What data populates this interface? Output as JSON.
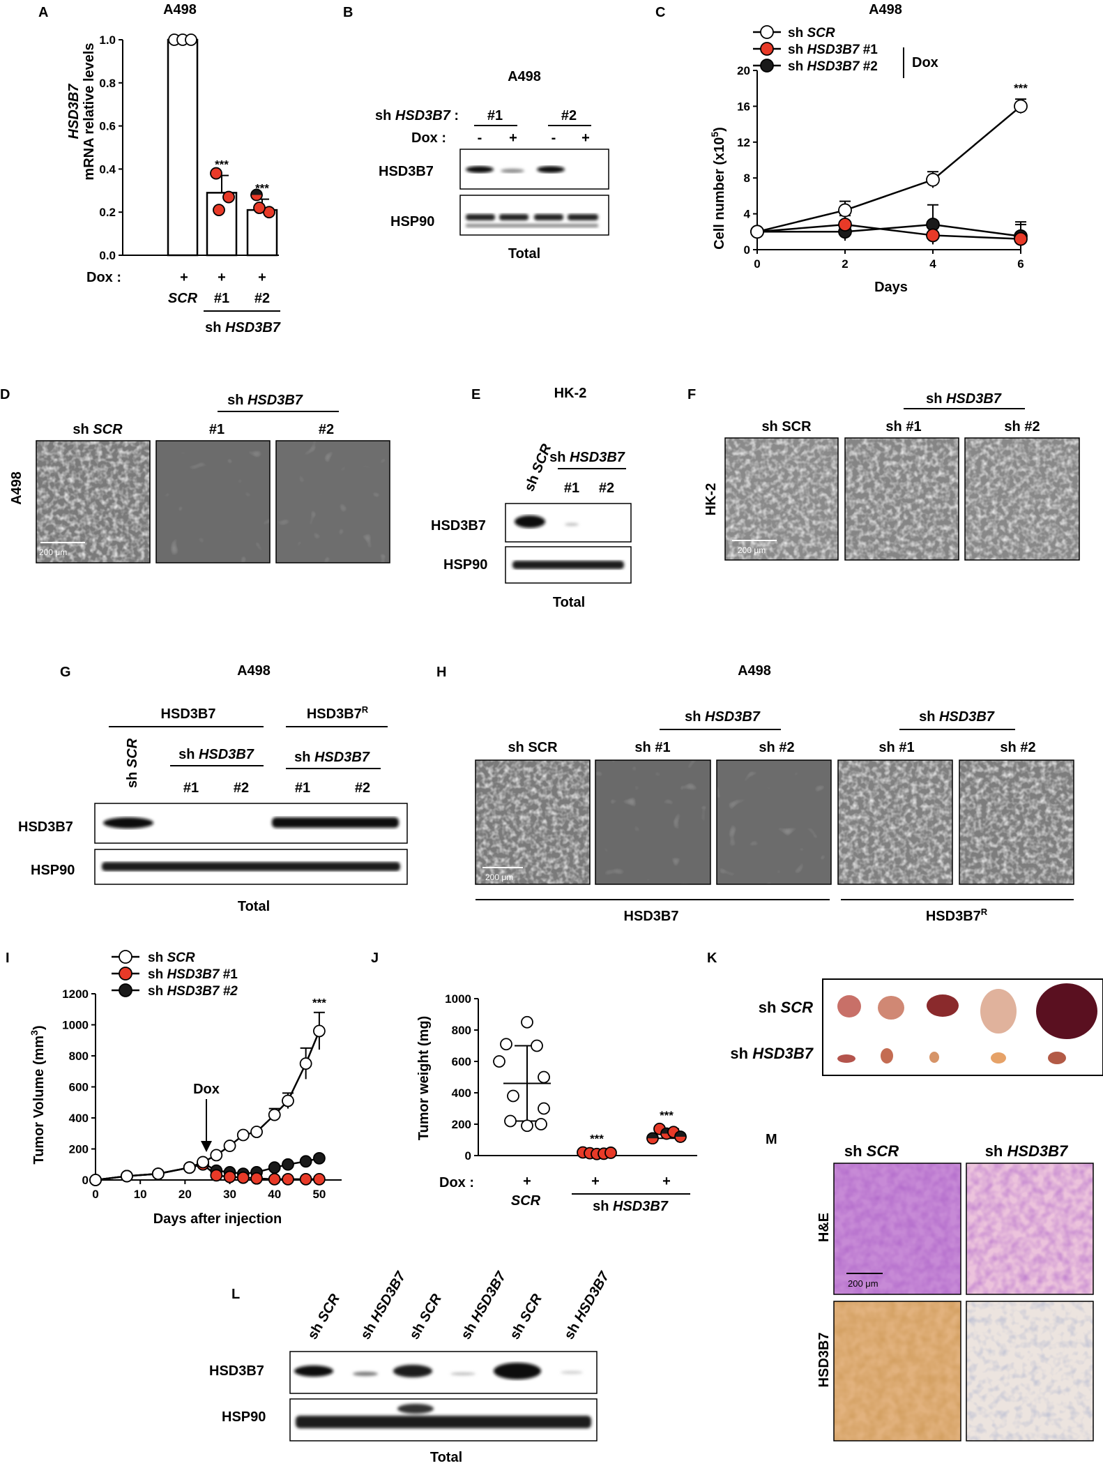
{
  "panels": {
    "A": {
      "letter": "A",
      "title": "A498",
      "ylabel_gene": "HSD3B7",
      "ylabel_rest": "mRNA relative levels",
      "dox_label": "Dox :",
      "plus": "+",
      "cats": [
        "SCR",
        "#1",
        "#2"
      ],
      "group_label": "sh ",
      "group_gene": "HSD3B7",
      "sig": "***"
    },
    "B": {
      "letter": "B",
      "title": "A498",
      "sh_label": "sh ",
      "sh_gene": "HSD3B7",
      "sh_colon": " :",
      "dox_label": "Dox :",
      "lanes": [
        "#1",
        "#2"
      ],
      "minus": "-",
      "plus": "+",
      "rows": [
        "HSD3B7",
        "HSP90"
      ],
      "footer": "Total"
    },
    "C": {
      "letter": "C",
      "title": "A498",
      "ylabel": "Cell number (x10",
      "ylabel_sup": "5",
      "ylabel_end": ")",
      "xlabel": "Days",
      "dox": "Dox",
      "sig": "***",
      "legend": [
        {
          "pre": "sh ",
          "it": "SCR",
          "post": ""
        },
        {
          "pre": "sh ",
          "it": "HSD3B7",
          "post": " #1"
        },
        {
          "pre": "sh ",
          "it": "HSD3B7",
          "post": " #2"
        }
      ]
    },
    "D": {
      "letter": "D",
      "side": "A498",
      "group": "sh ",
      "group_gene": "HSD3B7",
      "cols": [
        {
          "pre": "sh ",
          "it": "SCR"
        },
        {
          "pre": "#1",
          "it": ""
        },
        {
          "pre": "#2",
          "it": ""
        }
      ],
      "scale": "200 μm"
    },
    "E": {
      "letter": "E",
      "title": "HK-2",
      "lane_scr_pre": "sh ",
      "lane_scr_it": "SCR",
      "group": "sh ",
      "group_gene": "HSD3B7",
      "lanes": [
        "#1",
        "#2"
      ],
      "rows": [
        "HSD3B7",
        "HSP90"
      ],
      "footer": "Total"
    },
    "F": {
      "letter": "F",
      "side": "HK-2",
      "group": "sh ",
      "group_gene": "HSD3B7",
      "cols": [
        "sh SCR",
        "sh #1",
        "sh #2"
      ],
      "scale": "200 μm"
    },
    "G": {
      "letter": "G",
      "title": "A498",
      "grp1": "HSD3B7",
      "grp2": "HSD3B7",
      "grp2_sup": "R",
      "sub": "sh ",
      "sub_gene": "HSD3B7",
      "lane_scr_pre": "sh ",
      "lane_scr_it": "SCR",
      "lanes": [
        "#1",
        "#2",
        "#1",
        "#2"
      ],
      "rows": [
        "HSD3B7",
        "HSP90"
      ],
      "footer": "Total"
    },
    "H": {
      "letter": "H",
      "title": "A498",
      "group": "sh ",
      "group_gene": "HSD3B7",
      "cols": [
        "sh SCR",
        "sh #1",
        "sh #2",
        "sh #1",
        "sh #2"
      ],
      "scale": "200 μm",
      "bottom1": "HSD3B7",
      "bottom2": "HSD3B7",
      "bottom2_sup": "R"
    },
    "I": {
      "letter": "I",
      "ylabel": "Tumor Volume (mm",
      "ylabel_sup": "3",
      "ylabel_end": ")",
      "xlabel": "Days after injection",
      "arrow": "Dox",
      "sig": "***",
      "legend": [
        {
          "pre": "sh ",
          "it": "SCR",
          "post": ""
        },
        {
          "pre": "sh ",
          "it": "HSD3B7",
          "post": " #1"
        },
        {
          "pre": "sh ",
          "it": "HSD3B7 #2",
          "post": ""
        }
      ]
    },
    "J": {
      "letter": "J",
      "ylabel": "Tumor weight (mg)",
      "dox_label": "Dox :",
      "plus": "+",
      "cat1": "SCR",
      "group": "sh ",
      "group_gene": "HSD3B7",
      "sig": "***"
    },
    "K": {
      "letter": "K",
      "rows": [
        {
          "pre": "sh ",
          "it": "SCR"
        },
        {
          "pre": "sh ",
          "it": "HSD3B7"
        }
      ]
    },
    "L": {
      "letter": "L",
      "lanes": [
        {
          "pre": "sh ",
          "it": "SCR"
        },
        {
          "pre": "sh ",
          "it": "HSD3B7"
        },
        {
          "pre": "sh ",
          "it": "SCR"
        },
        {
          "pre": "sh ",
          "it": "HSD3B7"
        },
        {
          "pre": "sh ",
          "it": "SCR"
        },
        {
          "pre": "sh ",
          "it": "HSD3B7"
        }
      ],
      "rows": [
        "HSD3B7",
        "HSP90"
      ],
      "footer": "Total"
    },
    "M": {
      "letter": "M",
      "cols": [
        {
          "pre": "sh ",
          "it": "SCR"
        },
        {
          "pre": "sh ",
          "it": "HSD3B7"
        }
      ],
      "rows": [
        "H&E",
        "HSD3B7"
      ],
      "scale": "200 μm"
    }
  },
  "chart_data": [
    {
      "type": "bar",
      "panel": "A",
      "categories": [
        "SCR",
        "#1",
        "#2"
      ],
      "values": [
        1.0,
        0.29,
        0.21
      ],
      "errors": [
        0.0,
        0.08,
        0.05
      ],
      "points": [
        [
          1.0,
          1.0,
          1.0
        ],
        [
          0.38,
          0.27,
          0.21
        ],
        [
          0.28,
          0.2,
          0.22
        ]
      ],
      "ylim": [
        0,
        1.0
      ],
      "yticks": [
        "0.0",
        "0.2",
        "0.4",
        "0.6",
        "0.8",
        "1.0"
      ]
    },
    {
      "type": "line",
      "panel": "C",
      "x": [
        0,
        2,
        4,
        6
      ],
      "xticks": [
        "0",
        "2",
        "4",
        "6"
      ],
      "ylim": [
        0,
        20
      ],
      "yticks": [
        "0",
        "4",
        "8",
        "12",
        "16",
        "20"
      ],
      "series": [
        {
          "name": "sh SCR",
          "values": [
            2.0,
            4.4,
            7.8,
            16.0
          ],
          "errors": [
            0.3,
            1.0,
            0.9,
            0.8
          ],
          "color": "#ffffff"
        },
        {
          "name": "sh HSD3B7 #1",
          "values": [
            2.0,
            2.8,
            1.6,
            1.2
          ],
          "errors": [
            0.3,
            1.0,
            1.0,
            1.9
          ],
          "color": "#e83a28"
        },
        {
          "name": "sh HSD3B7 #2",
          "values": [
            2.0,
            2.0,
            2.8,
            1.5
          ],
          "errors": [
            0.3,
            1.0,
            2.2,
            1.3
          ],
          "color": "#1a1a1a"
        }
      ]
    },
    {
      "type": "line",
      "panel": "I",
      "ylim": [
        0,
        1200
      ],
      "yticks": [
        "0",
        "200",
        "400",
        "600",
        "800",
        "1000",
        "1200"
      ],
      "xlim": [
        0,
        55
      ],
      "xticks": [
        "0",
        "10",
        "20",
        "30",
        "40",
        "50"
      ],
      "series": [
        {
          "name": "sh SCR",
          "x": [
            0,
            7,
            14,
            21,
            24,
            27,
            30,
            33,
            36,
            40,
            43,
            47,
            50
          ],
          "values": [
            0,
            25,
            40,
            80,
            115,
            160,
            220,
            290,
            310,
            420,
            510,
            750,
            960
          ],
          "color": "#ffffff"
        },
        {
          "name": "sh HSD3B7 #1",
          "x": [
            0,
            7,
            14,
            21,
            24,
            27,
            30,
            33,
            36,
            40,
            43,
            47,
            50
          ],
          "values": [
            0,
            25,
            40,
            80,
            100,
            30,
            20,
            15,
            10,
            5,
            5,
            5,
            5
          ],
          "color": "#e83a28"
        },
        {
          "name": "sh HSD3B7 #2",
          "x": [
            0,
            7,
            14,
            21,
            24,
            27,
            30,
            33,
            36,
            40,
            43,
            47,
            50
          ],
          "values": [
            0,
            25,
            40,
            80,
            110,
            60,
            50,
            40,
            50,
            80,
            100,
            120,
            140
          ],
          "color": "#1a1a1a"
        }
      ]
    },
    {
      "type": "scatter",
      "panel": "J",
      "ylim": [
        0,
        1000
      ],
      "yticks": [
        "0",
        "200",
        "400",
        "600",
        "800",
        "1000"
      ],
      "groups": [
        {
          "label": "SCR",
          "points": [
            850,
            710,
            700,
            600,
            500,
            380,
            300,
            220,
            200,
            190
          ],
          "mean": 460,
          "sd": 240,
          "color": "#ffffff"
        },
        {
          "label": "sh HSD3B7 #1",
          "points": [
            20,
            15,
            10,
            12,
            18
          ],
          "mean": 15,
          "sd": 5,
          "color": "#e83a28"
        },
        {
          "label": "sh HSD3B7 #2",
          "points": [
            110,
            170,
            140,
            150,
            120
          ],
          "mean": 140,
          "sd": 30,
          "color": "split"
        }
      ]
    }
  ]
}
